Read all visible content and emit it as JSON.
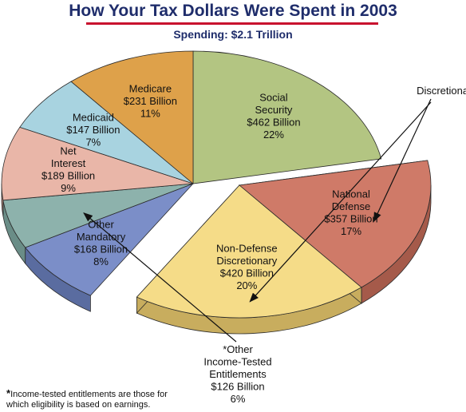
{
  "chart_data": {
    "type": "pie",
    "title": "How Your Tax Dollars Were Spent in 2003",
    "subtitle": "Spending: $2.1 Trillion",
    "unit": "Billion",
    "slices": [
      {
        "name": "Social Security",
        "lines": [
          "Social",
          "Security",
          "$462 Billion",
          "22%"
        ],
        "value": 462,
        "percent": 22,
        "color": "#b3c582",
        "side": "#8f9e5c",
        "exploded": false
      },
      {
        "name": "National Defense",
        "lines": [
          "National",
          "Defense",
          "$357 Billion",
          "17%"
        ],
        "value": 357,
        "percent": 17,
        "color": "#cf7a68",
        "side": "#a55a4a",
        "exploded": true
      },
      {
        "name": "Non-Defense Discretionary",
        "lines": [
          "Non-Defense",
          "Discretionary",
          "$420 Billion",
          "20%"
        ],
        "value": 420,
        "percent": 20,
        "color": "#f5dc88",
        "side": "#c8ad5e",
        "exploded": true
      },
      {
        "name": "Other Mandatory",
        "lines": [
          "Other",
          "Mandatory",
          "$168 Billion",
          "8%"
        ],
        "value": 168,
        "percent": 8,
        "color": "#7b8ec8",
        "side": "#5a6ca0",
        "exploded": false
      },
      {
        "name": "Other Income-Tested Entitlements",
        "lines": [],
        "value": 126,
        "percent": 6,
        "color": "#8db2ac",
        "side": "#6a8d87",
        "exploded": false
      },
      {
        "name": "Net Interest",
        "lines": [
          "Net",
          "Interest",
          "$189 Billion",
          "9%"
        ],
        "value": 189,
        "percent": 9,
        "color": "#e9b6a8",
        "side": "#c08e81",
        "exploded": false
      },
      {
        "name": "Medicaid",
        "lines": [
          "Medicaid",
          "$147 Billion",
          "7%"
        ],
        "value": 147,
        "percent": 7,
        "color": "#a8d3e0",
        "side": "#7fa9b6",
        "exploded": false
      },
      {
        "name": "Medicare",
        "lines": [
          "Medicare",
          "$231 Billion",
          "11%"
        ],
        "value": 231,
        "percent": 11,
        "color": "#dea14a",
        "side": "#b07c30",
        "exploded": false
      }
    ],
    "annotations": {
      "discretionary_label": "Discretionary",
      "other_entitlements_lines": [
        "*Other",
        "Income-Tested",
        "Entitlements",
        "$126 Billion",
        "6%"
      ]
    }
  },
  "footnote": {
    "star": "*",
    "text": "Income-tested entitlements are those for which eligibility is based on earnings."
  }
}
